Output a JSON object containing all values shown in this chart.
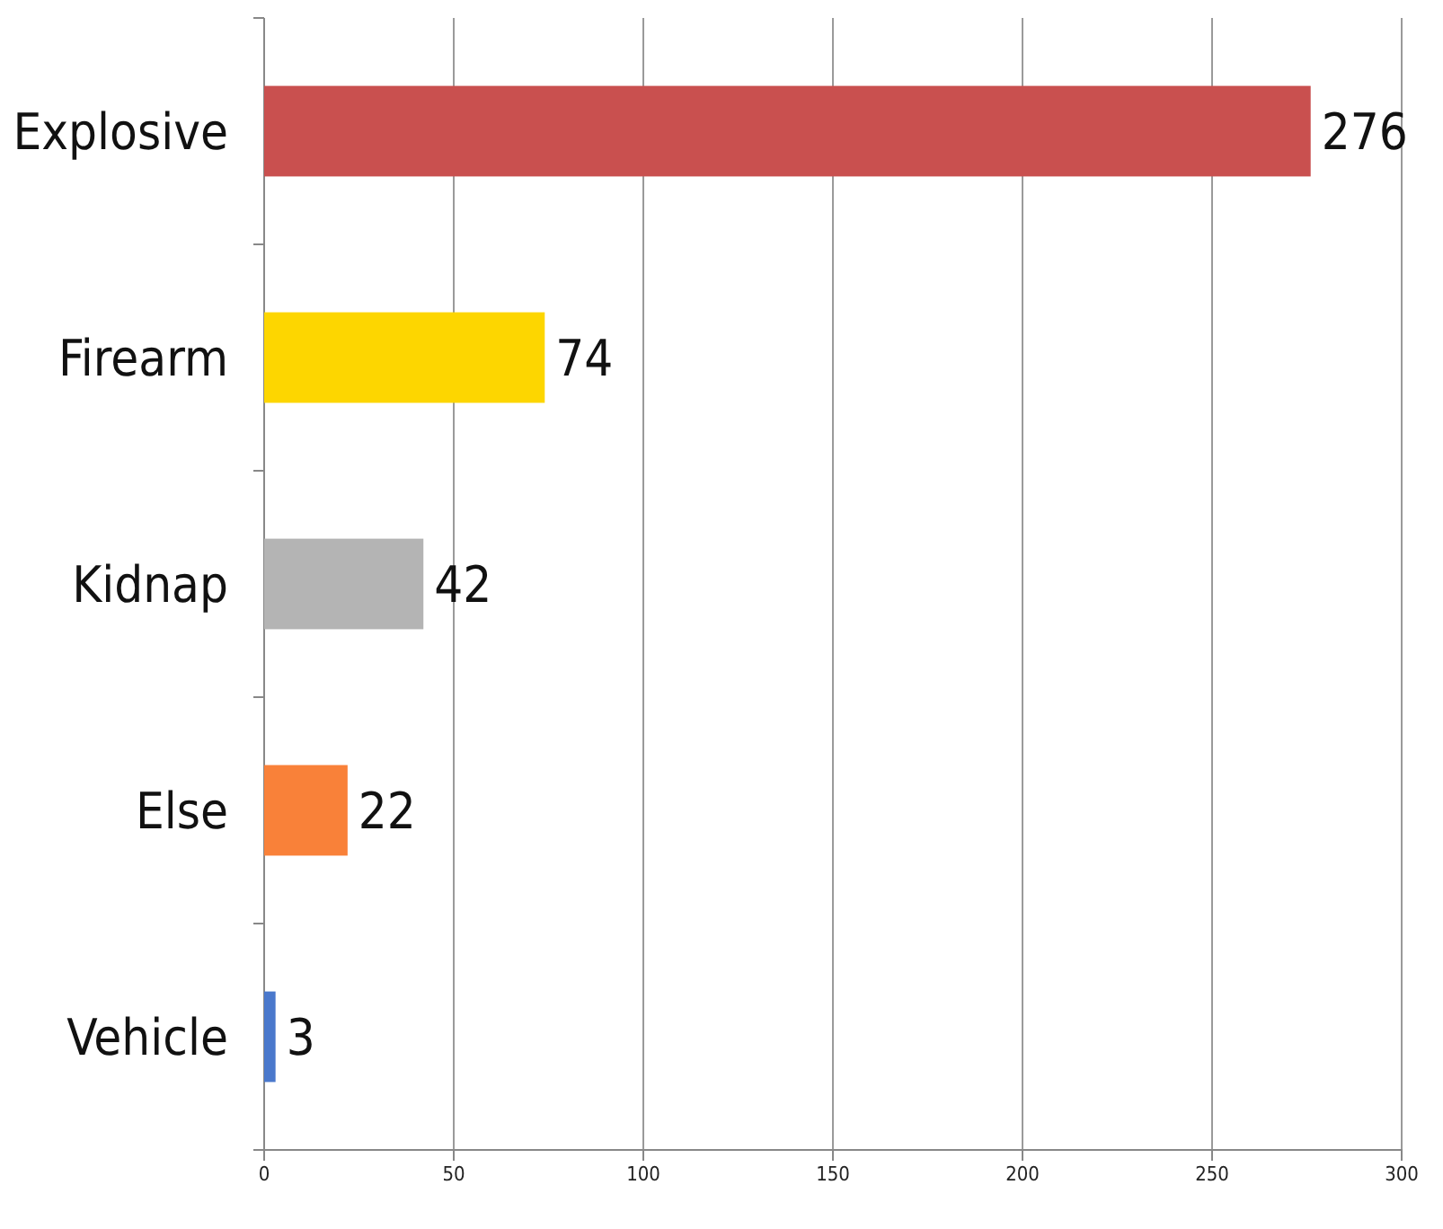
{
  "chart_data": {
    "type": "bar",
    "orientation": "horizontal",
    "categories": [
      "Explosive",
      "Firearm",
      "Kidnap",
      "Else",
      "Vehicle"
    ],
    "values": [
      276,
      74,
      42,
      22,
      3
    ],
    "colors": [
      "#c9504f",
      "#fdd600",
      "#b4b4b4",
      "#f98139",
      "#4a78cc"
    ],
    "xlim": [
      0,
      300
    ],
    "xticks": [
      0,
      50,
      100,
      150,
      200,
      250,
      300
    ],
    "grid": "x",
    "data_labels": true
  }
}
